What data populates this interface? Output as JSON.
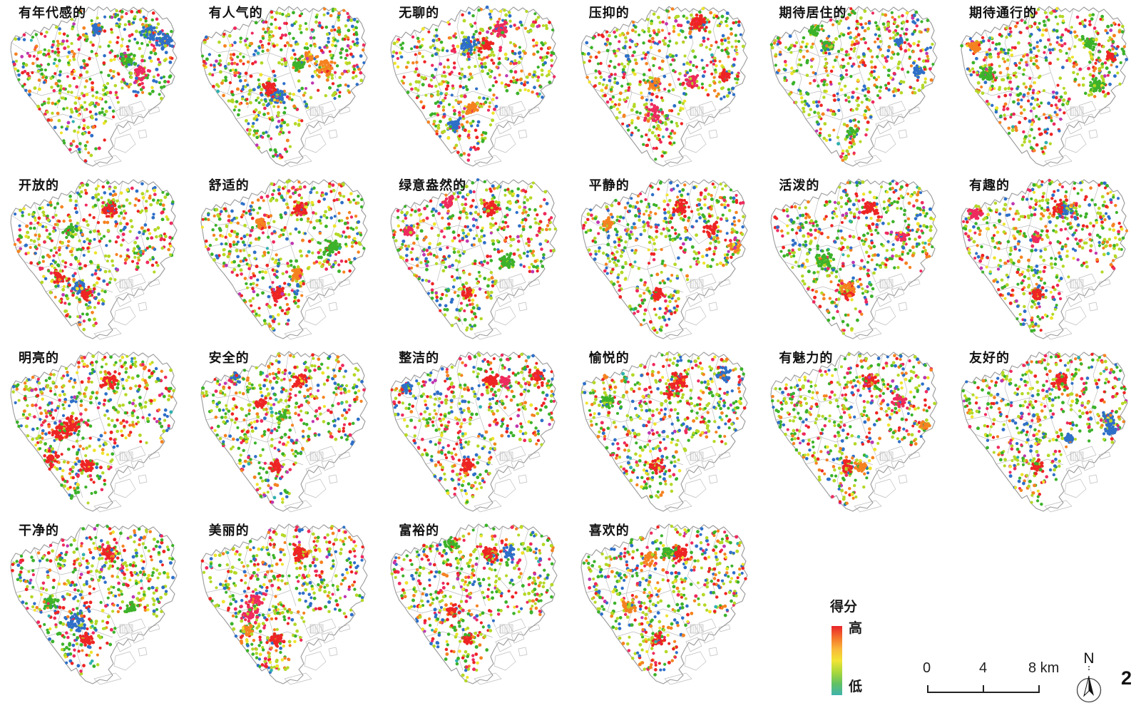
{
  "maps": [
    {
      "title": "有年代感的"
    },
    {
      "title": "有人气的"
    },
    {
      "title": "无聊的"
    },
    {
      "title": "压抑的"
    },
    {
      "title": "期待居住的"
    },
    {
      "title": "期待通行的"
    },
    {
      "title": "开放的"
    },
    {
      "title": "舒适的"
    },
    {
      "title": "绿意盎然的"
    },
    {
      "title": "平静的"
    },
    {
      "title": "活泼的"
    },
    {
      "title": "有趣的"
    },
    {
      "title": "明亮的"
    },
    {
      "title": "安全的"
    },
    {
      "title": "整洁的"
    },
    {
      "title": "愉悦的"
    },
    {
      "title": "有魅力的"
    },
    {
      "title": "友好的"
    },
    {
      "title": "干净的"
    },
    {
      "title": "美丽的"
    },
    {
      "title": "富裕的"
    },
    {
      "title": "喜欢的"
    }
  ],
  "legend": {
    "title": "得分",
    "high_label": "高",
    "low_label": "低",
    "gradient": [
      "#e8232a",
      "#f4722b",
      "#f9b83a",
      "#f2e435",
      "#aad83c",
      "#62c162",
      "#3fb3ae"
    ]
  },
  "scale_bar": {
    "labels": [
      "0",
      "4",
      "8 km"
    ]
  },
  "north_arrow": {
    "label": "N"
  },
  "page_number": "2",
  "dot_palette": {
    "red": "#ee2424",
    "crimson": "#ee2a5e",
    "orange": "#f58220",
    "yellow": "#efe32b",
    "yellow_green": "#b4d827",
    "green": "#3cb22a",
    "blue": "#2e6fc8",
    "teal": "#2fb0ae",
    "magenta": "#bf36b0"
  },
  "basemap": {
    "outline_color": "#9a9a9a",
    "ward_line_color": "#bdbdbd"
  }
}
